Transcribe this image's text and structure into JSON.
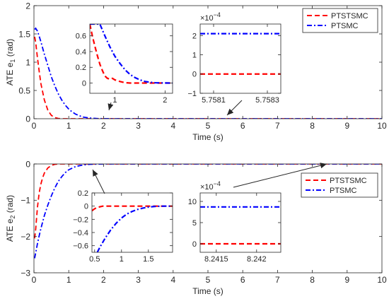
{
  "chart_data": [
    {
      "id": "main1",
      "type": "line",
      "xlabel": "Time (s)",
      "ylabel_main": "ATE e",
      "ylabel_sub": "1",
      "ylabel_unit": " (rad)",
      "xlim": [
        0,
        10
      ],
      "ylim": [
        0,
        2
      ],
      "xticks": [
        0,
        1,
        2,
        3,
        4,
        5,
        6,
        7,
        8,
        9,
        10
      ],
      "yticks": [
        0,
        0.5,
        1,
        1.5,
        2
      ],
      "legend_position": "top-right",
      "series": [
        {
          "name": "PTSTSMC",
          "color": "#ff0000",
          "dash": "dashed",
          "x": [
            0.02,
            0.05,
            0.1,
            0.15,
            0.2,
            0.3,
            0.4,
            0.5,
            0.6,
            0.7,
            0.8,
            0.9,
            1.0,
            1.2,
            1.5,
            2,
            3,
            10
          ],
          "y": [
            1.45,
            1.35,
            1.08,
            0.84,
            0.62,
            0.33,
            0.15,
            0.06,
            0.02,
            0.005,
            0,
            0,
            0,
            0,
            0,
            0,
            0,
            0
          ]
        },
        {
          "name": "PTSMC",
          "color": "#0000ff",
          "dash": "dashdot",
          "x": [
            0.02,
            0.05,
            0.1,
            0.15,
            0.2,
            0.3,
            0.4,
            0.5,
            0.6,
            0.7,
            0.8,
            0.9,
            1.0,
            1.1,
            1.2,
            1.4,
            1.6,
            1.8,
            2.0,
            2.5,
            3,
            10
          ],
          "y": [
            1.58,
            1.6,
            1.55,
            1.46,
            1.36,
            1.14,
            0.94,
            0.74,
            0.58,
            0.44,
            0.33,
            0.24,
            0.17,
            0.12,
            0.08,
            0.03,
            0.012,
            0.004,
            0.001,
            0,
            0,
            0
          ]
        }
      ]
    },
    {
      "id": "inset1a",
      "type": "line",
      "xlim": [
        0.5,
        2.15
      ],
      "ylim": [
        -0.13,
        0.75
      ],
      "xticks": [
        1,
        2
      ],
      "yticks": [
        0,
        0.2,
        0.4,
        0.6
      ],
      "series": [
        {
          "name": "PTSTSMC",
          "color": "#ff0000",
          "dash": "dashed",
          "x": [
            0.5,
            0.55,
            0.6,
            0.65,
            0.7,
            0.75,
            0.8,
            0.85,
            0.9,
            0.95,
            1.0,
            1.1,
            1.2,
            1.3,
            1.4,
            1.5,
            1.6,
            2.15
          ],
          "y": [
            0.75,
            0.6,
            0.47,
            0.35,
            0.24,
            0.16,
            0.09,
            0.06,
            0.05,
            0.06,
            0.04,
            0.02,
            0.005,
            0,
            0,
            0,
            0,
            0
          ]
        },
        {
          "name": "PTSMC",
          "color": "#0000ff",
          "dash": "dashdot",
          "x": [
            0.5,
            0.6,
            0.7,
            0.8,
            0.9,
            1.0,
            1.1,
            1.2,
            1.3,
            1.4,
            1.5,
            1.6,
            1.7,
            1.8,
            1.9,
            2.0,
            2.15
          ],
          "y": [
            0.75,
            0.75,
            0.75,
            0.6,
            0.46,
            0.34,
            0.25,
            0.17,
            0.11,
            0.07,
            0.04,
            0.02,
            0.01,
            0.004,
            0.002,
            0.001,
            0
          ]
        }
      ]
    },
    {
      "id": "inset1b",
      "type": "line",
      "xlim": [
        5.75805,
        5.75835
      ],
      "ylim": [
        -1,
        2.6
      ],
      "xticks": [
        5.7581,
        5.7583
      ],
      "xticklabels": [
        "5.7581",
        "5.7583"
      ],
      "yticks": [
        -1,
        0,
        1,
        2
      ],
      "exponent_label": "×10",
      "exponent": "−4",
      "series": [
        {
          "name": "PTSTSMC",
          "color": "#ff0000",
          "dash": "dashed",
          "x": [
            5.75805,
            5.75835
          ],
          "y": [
            0,
            0
          ]
        },
        {
          "name": "PTSMC",
          "color": "#0000ff",
          "dash": "dashdot",
          "x": [
            5.75805,
            5.75835
          ],
          "y": [
            2.1,
            2.1
          ]
        }
      ]
    },
    {
      "id": "main2",
      "type": "line",
      "xlabel": "Time (s)",
      "ylabel_main": "ATE e",
      "ylabel_sub": "2",
      "ylabel_unit": " (rad)",
      "xlim": [
        0,
        10
      ],
      "ylim": [
        -3,
        0
      ],
      "xticks": [
        0,
        1,
        2,
        3,
        4,
        5,
        6,
        7,
        8,
        9,
        10
      ],
      "yticks": [
        -3,
        -2,
        -1,
        0
      ],
      "legend_position": "right",
      "series": [
        {
          "name": "PTSTSMC",
          "color": "#ff0000",
          "dash": "dashed",
          "x": [
            0.02,
            0.05,
            0.1,
            0.15,
            0.2,
            0.25,
            0.3,
            0.4,
            0.5,
            0.6,
            0.7,
            0.8,
            1.0,
            10
          ],
          "y": [
            -2.05,
            -1.8,
            -1.2,
            -0.8,
            -0.55,
            -0.38,
            -0.25,
            -0.11,
            -0.04,
            -0.01,
            0,
            0,
            0,
            0
          ]
        },
        {
          "name": "PTSMC",
          "color": "#0000ff",
          "dash": "dashdot",
          "x": [
            0.02,
            0.05,
            0.1,
            0.15,
            0.2,
            0.3,
            0.4,
            0.5,
            0.6,
            0.7,
            0.8,
            0.9,
            1.0,
            1.2,
            1.4,
            1.6,
            2.0,
            10
          ],
          "y": [
            -2.6,
            -2.45,
            -2.2,
            -1.98,
            -1.78,
            -1.42,
            -1.13,
            -0.88,
            -0.66,
            -0.48,
            -0.35,
            -0.24,
            -0.16,
            -0.07,
            -0.03,
            -0.01,
            0,
            0
          ]
        }
      ]
    },
    {
      "id": "inset2a",
      "type": "line",
      "xlim": [
        0.45,
        1.95
      ],
      "ylim": [
        -0.7,
        0.2
      ],
      "xticks": [
        0.5,
        1,
        1.5
      ],
      "yticks": [
        -0.6,
        -0.4,
        -0.2,
        0,
        0.2
      ],
      "series": [
        {
          "name": "PTSTSMC",
          "color": "#ff0000",
          "dash": "dashed",
          "x": [
            0.45,
            0.5,
            0.55,
            0.6,
            0.65,
            0.7,
            0.8,
            0.9,
            1.0,
            1.2,
            1.5,
            1.95
          ],
          "y": [
            -0.07,
            -0.04,
            -0.02,
            -0.01,
            0,
            0,
            0,
            0,
            0,
            0,
            0,
            0
          ]
        },
        {
          "name": "PTSMC",
          "color": "#0000ff",
          "dash": "dashdot",
          "x": [
            0.55,
            0.6,
            0.7,
            0.8,
            0.9,
            1.0,
            1.1,
            1.2,
            1.3,
            1.4,
            1.5,
            1.6,
            1.7,
            1.8,
            1.95
          ],
          "y": [
            -0.7,
            -0.62,
            -0.48,
            -0.36,
            -0.26,
            -0.18,
            -0.12,
            -0.08,
            -0.05,
            -0.03,
            -0.015,
            -0.006,
            -0.002,
            0,
            0
          ]
        }
      ]
    },
    {
      "id": "inset2b",
      "type": "line",
      "xlim": [
        8.2413,
        8.2423
      ],
      "ylim": [
        -2,
        12
      ],
      "xticks": [
        8.2415,
        8.242
      ],
      "xticklabels": [
        "8.2415",
        "8.242"
      ],
      "yticks": [
        0,
        5,
        10
      ],
      "exponent_label": "×10",
      "exponent": "−4",
      "series": [
        {
          "name": "PTSTSMC",
          "color": "#ff0000",
          "dash": "dashed",
          "x": [
            8.2413,
            8.2423
          ],
          "y": [
            0,
            0
          ]
        },
        {
          "name": "PTSMC",
          "color": "#0000ff",
          "dash": "dashdot",
          "x": [
            8.2413,
            8.2423
          ],
          "y": [
            8.7,
            8.7
          ]
        }
      ]
    }
  ]
}
